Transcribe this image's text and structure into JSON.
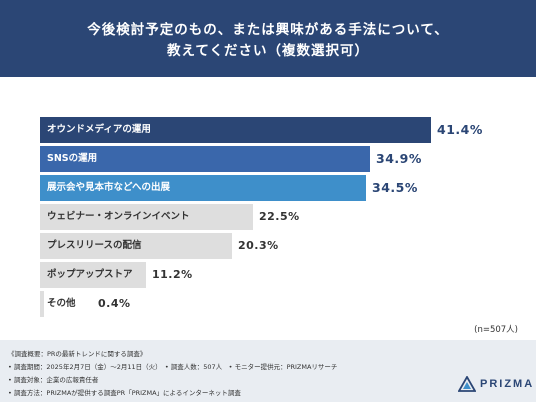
{
  "header": {
    "line1": "今後検討予定のもの、または興味がある手法について、",
    "line2": "教えてください（複数選択可）"
  },
  "chart_data": {
    "type": "bar",
    "orientation": "horizontal",
    "categories": [
      "オウンドメディアの運用",
      "SNSの運用",
      "展示会や見本市などへの出展",
      "ウェビナー・オンラインイベント",
      "プレスリリースの配信",
      "ポップアップストア",
      "その他"
    ],
    "values": [
      41.4,
      34.9,
      34.5,
      22.5,
      20.3,
      11.2,
      0.4
    ],
    "value_labels": [
      "41.4%",
      "34.9%",
      "34.5%",
      "22.5%",
      "20.3%",
      "11.2%",
      "0.4%"
    ],
    "unit": "%",
    "xlim": [
      0,
      41.4
    ],
    "grid": false,
    "legend": "none",
    "bar_colors": [
      "#2b4675",
      "#3a67ab",
      "#3e8fca",
      "#dedede",
      "#dedede",
      "#dedede",
      "#dedede"
    ],
    "label_colors": [
      "#ffffff",
      "#ffffff",
      "#ffffff",
      "#333333",
      "#333333",
      "#333333",
      "#333333"
    ],
    "value_colors": [
      "#2b4675",
      "#2b4675",
      "#2b4675",
      "#333333",
      "#333333",
      "#333333",
      "#333333"
    ]
  },
  "sample_size": "(n=507人)",
  "footer": {
    "notes": [
      "《調査概要：PRの最新トレンドに関する調査》",
      "• 調査期間：2025年2月7日（金）〜2月11日（火）　• 調査人数：507人　• モニター提供元：PRIZMAリサーチ",
      "• 調査対象：企業の広報責任者",
      "• 調査方法：PRIZMAが提供する調査PR「PRIZMA」によるインターネット調査"
    ],
    "logo_text": "PRIZMA",
    "logo_icon": "prism-triangle-icon"
  }
}
